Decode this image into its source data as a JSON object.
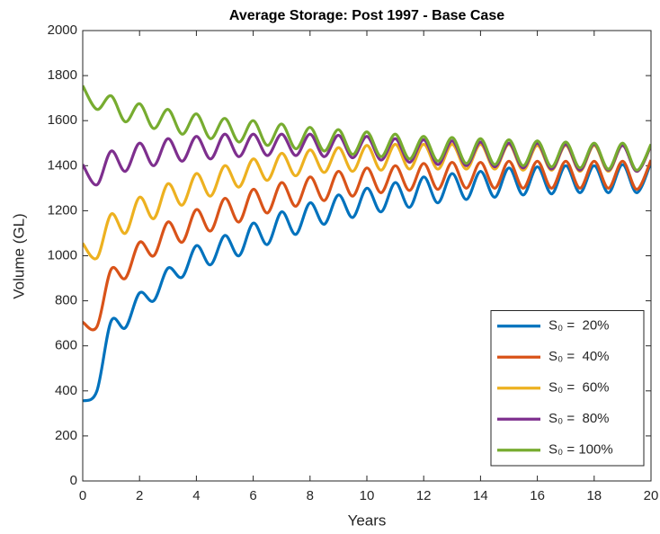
{
  "chart_data": {
    "type": "line",
    "title": "Average Storage: Post 1997 - Base Case",
    "xlabel": "Years",
    "ylabel": "Volume (GL)",
    "xlim": [
      0,
      20
    ],
    "xticks": [
      0,
      2,
      4,
      6,
      8,
      10,
      12,
      14,
      16,
      18,
      20
    ],
    "ylim": [
      0,
      2000
    ],
    "yticks": [
      0,
      200,
      400,
      600,
      800,
      1000,
      1200,
      1400,
      1600,
      1800,
      2000
    ],
    "legend": "southeast",
    "x": [
      0,
      0.5,
      1,
      1.5,
      2,
      2.5,
      3,
      3.5,
      4,
      4.5,
      5,
      5.5,
      6,
      6.5,
      7,
      7.5,
      8,
      8.5,
      9,
      9.5,
      10,
      10.5,
      11,
      11.5,
      12,
      12.5,
      13,
      13.5,
      14,
      14.5,
      15,
      15.5,
      16,
      16.5,
      17,
      17.5,
      18,
      18.5,
      19,
      19.5,
      20
    ],
    "series": [
      {
        "name": "S₀ =  20%",
        "color": "#0072BD",
        "values": [
          355,
          400,
          710,
          680,
          835,
          800,
          945,
          905,
          1045,
          960,
          1090,
          1000,
          1145,
          1050,
          1195,
          1095,
          1235,
          1140,
          1270,
          1170,
          1300,
          1195,
          1325,
          1215,
          1350,
          1235,
          1365,
          1250,
          1375,
          1260,
          1390,
          1270,
          1395,
          1275,
          1400,
          1280,
          1400,
          1280,
          1405,
          1280,
          1415
        ]
      },
      {
        "name": "S₀ =  40%",
        "color": "#D95319",
        "values": [
          705,
          685,
          940,
          900,
          1060,
          1000,
          1150,
          1060,
          1205,
          1110,
          1255,
          1150,
          1295,
          1190,
          1325,
          1220,
          1350,
          1245,
          1375,
          1265,
          1390,
          1280,
          1400,
          1290,
          1410,
          1295,
          1415,
          1300,
          1415,
          1300,
          1420,
          1300,
          1420,
          1300,
          1420,
          1300,
          1420,
          1300,
          1420,
          1295,
          1425
        ]
      },
      {
        "name": "S₀ =  60%",
        "color": "#EDB120",
        "values": [
          1055,
          990,
          1185,
          1100,
          1260,
          1165,
          1320,
          1225,
          1365,
          1265,
          1400,
          1305,
          1430,
          1335,
          1455,
          1355,
          1470,
          1370,
          1480,
          1375,
          1490,
          1380,
          1495,
          1385,
          1495,
          1385,
          1495,
          1385,
          1495,
          1385,
          1495,
          1380,
          1490,
          1380,
          1490,
          1375,
          1490,
          1375,
          1490,
          1375,
          1490
        ]
      },
      {
        "name": "S₀ =  80%",
        "color": "#7E2F8E",
        "values": [
          1405,
          1315,
          1465,
          1375,
          1500,
          1400,
          1520,
          1420,
          1530,
          1430,
          1540,
          1440,
          1540,
          1445,
          1540,
          1445,
          1540,
          1440,
          1535,
          1435,
          1530,
          1425,
          1520,
          1415,
          1515,
          1405,
          1510,
          1400,
          1505,
          1395,
          1500,
          1390,
          1500,
          1385,
          1495,
          1380,
          1495,
          1380,
          1490,
          1375,
          1490
        ]
      },
      {
        "name": "S₀ = 100%",
        "color": "#77AC30",
        "values": [
          1755,
          1650,
          1710,
          1595,
          1675,
          1565,
          1650,
          1540,
          1630,
          1520,
          1610,
          1505,
          1600,
          1490,
          1585,
          1475,
          1570,
          1465,
          1560,
          1450,
          1550,
          1440,
          1540,
          1430,
          1530,
          1420,
          1525,
          1410,
          1520,
          1405,
          1515,
          1400,
          1510,
          1395,
          1505,
          1390,
          1500,
          1385,
          1500,
          1380,
          1495
        ]
      }
    ]
  }
}
